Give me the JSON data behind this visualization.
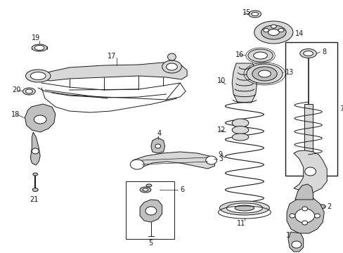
{
  "bg_color": "#ffffff",
  "line_color": "#1a1a1a",
  "figsize": [
    4.89,
    3.6
  ],
  "dpi": 100,
  "lw": 0.7,
  "fontsize": 7.0
}
